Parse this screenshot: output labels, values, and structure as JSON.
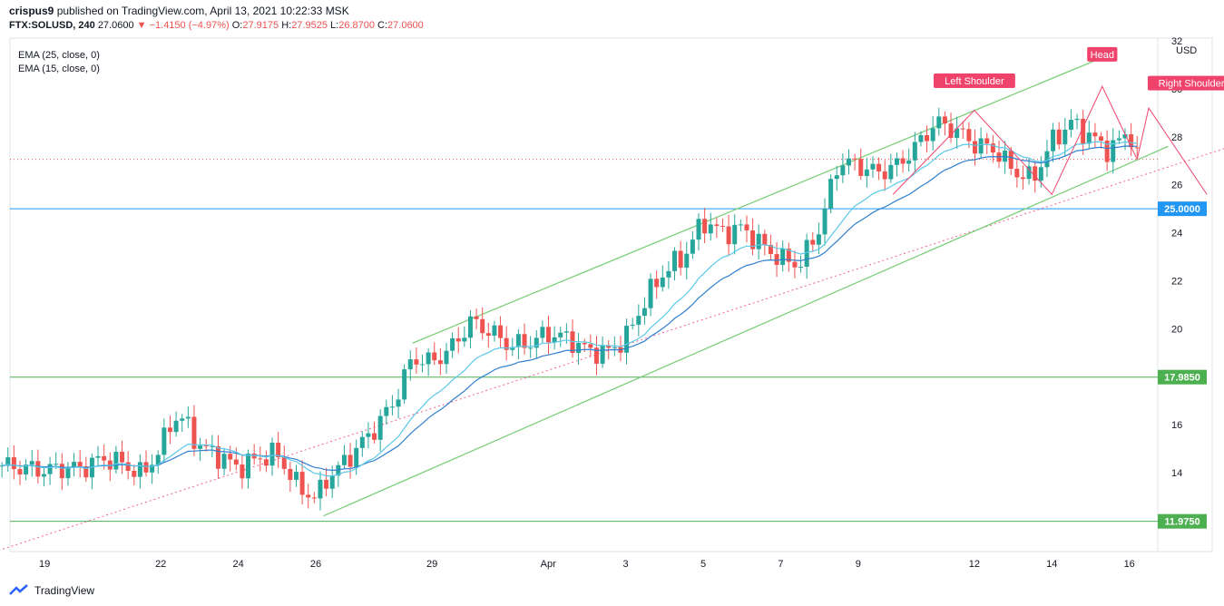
{
  "header": {
    "author": "crispus9",
    "published_text": "published on TradingView.com, April 13, 2021 10:22:33 MSK",
    "symbol": "FTX:SOLUSD, 240",
    "last": "27.0600",
    "change": "−1.4150 (−4.97%)",
    "o_label": "O:",
    "o": "27.9175",
    "h_label": "H:",
    "h": "27.9525",
    "l_label": "L:",
    "l": "26.8700",
    "c_label": "C:",
    "c": "27.0600"
  },
  "legend": {
    "ema25": "EMA (25, close, 0)",
    "ema15": "EMA (15, close, 0)"
  },
  "footer": {
    "brand": "TradingView"
  },
  "colors": {
    "up": "#26a69a",
    "down": "#ef5350",
    "ema25": "#2f7fd0",
    "ema15": "#5bc8e8",
    "channel": "#7ccf7c",
    "support_green": "#4caf50",
    "line_25": "#2196f3",
    "pattern": "#f0436c",
    "trend_dotted": "#f06292"
  },
  "chart_data": {
    "type": "candlestick",
    "currency": "USD",
    "ylim": [
      10.7,
      32
    ],
    "y_ticks": [
      "14",
      "16",
      "20",
      "22",
      "24",
      "26",
      "28",
      "30",
      "32"
    ],
    "x_ticks": [
      "19",
      "22",
      "24",
      "26",
      "29",
      "Apr",
      "3",
      "5",
      "7",
      "9",
      "12",
      "14",
      "16"
    ],
    "horizontal_levels": [
      {
        "label": "25.0000",
        "value": 25.0
      },
      {
        "label": "17.9850",
        "value": 17.985
      },
      {
        "label": "11.9750",
        "value": 11.975
      }
    ],
    "annotations": [
      "Left Shoulder",
      "Head",
      "Right Shoulder"
    ],
    "price_points": [
      [
        18.0,
        14.3
      ],
      [
        18.5,
        14.2
      ],
      [
        19.0,
        14.1
      ],
      [
        19.5,
        14.2
      ],
      [
        20.0,
        14.2
      ],
      [
        20.5,
        14.6
      ],
      [
        21.0,
        14.4
      ],
      [
        21.5,
        13.9
      ],
      [
        22.0,
        15.0
      ],
      [
        22.3,
        16.3
      ],
      [
        22.6,
        16.2
      ],
      [
        23.0,
        15.1
      ],
      [
        23.5,
        14.7
      ],
      [
        24.0,
        14.2
      ],
      [
        24.5,
        14.6
      ],
      [
        25.0,
        14.8
      ],
      [
        25.5,
        13.5
      ],
      [
        26.0,
        12.9
      ],
      [
        26.3,
        13.8
      ],
      [
        26.6,
        14.2
      ],
      [
        27.0,
        14.9
      ],
      [
        27.5,
        15.8
      ],
      [
        28.0,
        16.9
      ],
      [
        28.5,
        18.8
      ],
      [
        29.0,
        18.6
      ],
      [
        29.5,
        19.2
      ],
      [
        30.0,
        20.3
      ],
      [
        30.5,
        19.9
      ],
      [
        31.0,
        19.3
      ],
      [
        31.5,
        19.4
      ],
      [
        32.0,
        19.8
      ],
      [
        32.5,
        19.6
      ],
      [
        33.0,
        19.1
      ],
      [
        33.5,
        19.0
      ],
      [
        34.0,
        19.6
      ],
      [
        34.5,
        21.2
      ],
      [
        35.0,
        22.4
      ],
      [
        35.5,
        23.0
      ],
      [
        36.0,
        24.5
      ],
      [
        36.5,
        24.0
      ],
      [
        37.0,
        24.2
      ],
      [
        37.5,
        23.5
      ],
      [
        38.0,
        22.9
      ],
      [
        38.5,
        22.7
      ],
      [
        39.0,
        24.2
      ],
      [
        39.5,
        27.0
      ],
      [
        40.0,
        26.8
      ],
      [
        40.5,
        26.5
      ],
      [
        41.0,
        26.8
      ],
      [
        41.5,
        27.6
      ],
      [
        42.0,
        28.6
      ],
      [
        42.5,
        28.3
      ],
      [
        43.0,
        27.7
      ],
      [
        43.5,
        27.5
      ],
      [
        44.0,
        26.6
      ],
      [
        44.5,
        26.2
      ],
      [
        45.0,
        27.8
      ],
      [
        45.5,
        28.6
      ],
      [
        46.0,
        28.0
      ],
      [
        46.5,
        27.4
      ],
      [
        47.0,
        28.3
      ],
      [
        47.2,
        27.06
      ]
    ],
    "forecast_path": [
      [
        47.2,
        27.06
      ],
      [
        47.5,
        29.2
      ],
      [
        49.0,
        25.6
      ]
    ]
  }
}
